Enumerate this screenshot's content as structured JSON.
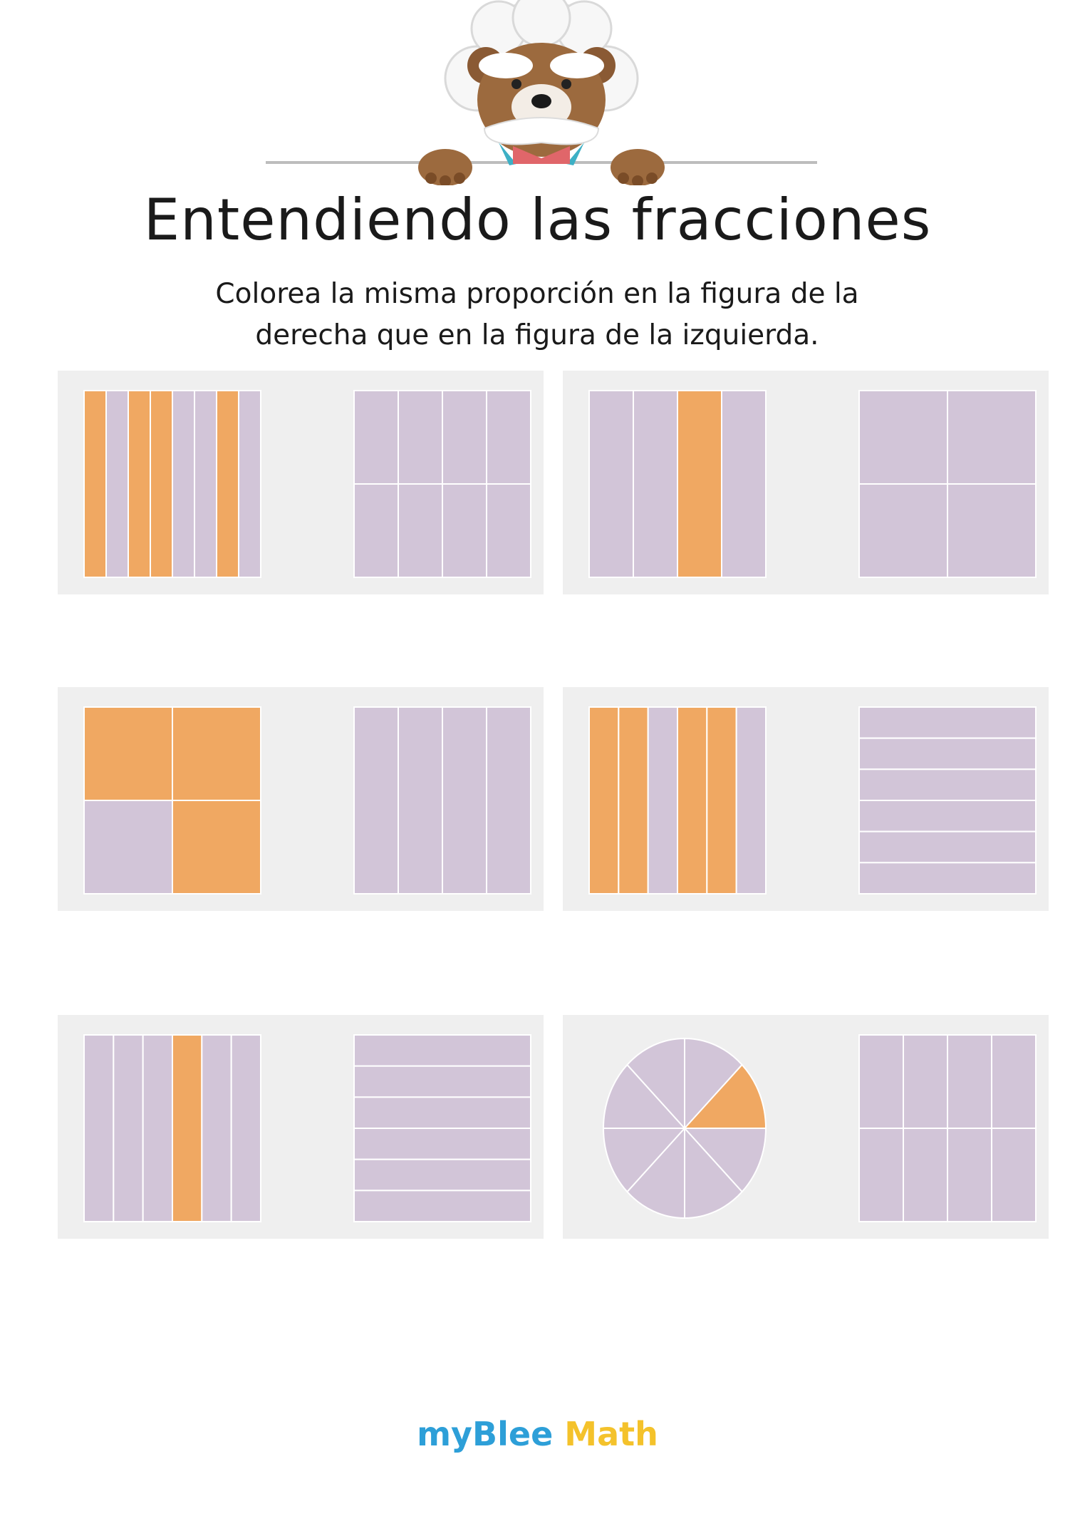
{
  "title": "Entendiendo las fracciones",
  "instructions_line1": "Colorea la misma proporción en la figura de la",
  "instructions_line2": "derecha que en la figura de la izquierda.",
  "footer": {
    "my": "my",
    "blee": "Blee",
    "math": "Math"
  },
  "colors": {
    "shaded": "#f0a862",
    "unshaded": "#d2c5d8",
    "divider": "#ffffff",
    "card": "#efefef"
  },
  "exercises": [
    {
      "left": {
        "kind": "columns",
        "parts": 8,
        "shaded": [
          0,
          2,
          3,
          6
        ]
      },
      "right": {
        "kind": "grid",
        "cols": 4,
        "rows": 2,
        "shaded": []
      }
    },
    {
      "left": {
        "kind": "columns",
        "parts": 4,
        "shaded": [
          2
        ]
      },
      "right": {
        "kind": "grid",
        "cols": 2,
        "rows": 2,
        "shaded": []
      }
    },
    {
      "left": {
        "kind": "grid",
        "cols": 2,
        "rows": 2,
        "shaded": [
          0,
          1,
          3
        ]
      },
      "right": {
        "kind": "columns",
        "parts": 4,
        "shaded": []
      }
    },
    {
      "left": {
        "kind": "columns",
        "parts": 6,
        "shaded": [
          0,
          1,
          3,
          4
        ]
      },
      "right": {
        "kind": "rows",
        "parts": 6,
        "shaded": []
      }
    },
    {
      "left": {
        "kind": "columns",
        "parts": 6,
        "shaded": [
          3
        ]
      },
      "right": {
        "kind": "rows",
        "parts": 6,
        "shaded": []
      }
    },
    {
      "left": {
        "kind": "pie",
        "parts": 8,
        "shaded": [
          1
        ]
      },
      "right": {
        "kind": "grid",
        "cols": 4,
        "rows": 2,
        "shaded": []
      }
    }
  ]
}
